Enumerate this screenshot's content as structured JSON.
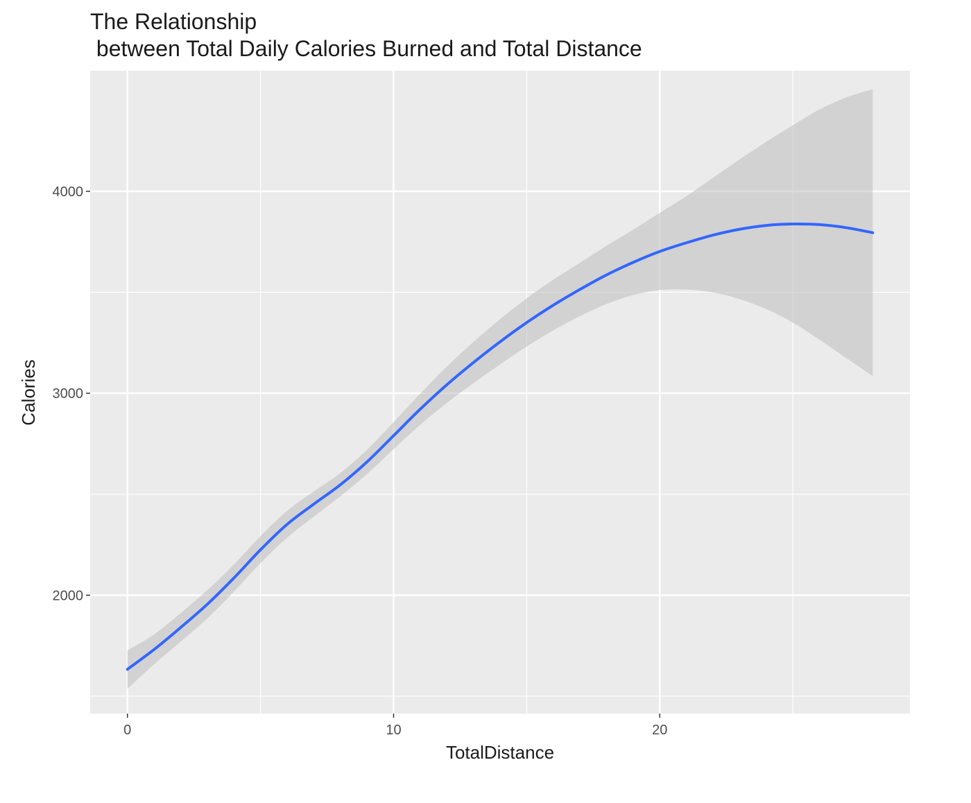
{
  "chart_data": {
    "type": "line",
    "title": "The Relationship\n   between Total Daily Calories Burned and Total Distance",
    "xlabel": "TotalDistance",
    "ylabel": "Calories",
    "xlim": [
      -1.4,
      29.4
    ],
    "ylim": [
      1414,
      4597
    ],
    "x_ticks": [
      0,
      10,
      20
    ],
    "y_ticks": [
      2000,
      3000,
      4000
    ],
    "x_minor": [
      5,
      15,
      25
    ],
    "y_minor": [
      1500,
      2500,
      3500
    ],
    "grid": true,
    "legend": "none",
    "colors": {
      "panel": "#ebebeb",
      "grid": "#ffffff",
      "line": "#3366ff",
      "ribbon": "#bdbdbd"
    },
    "series": [
      {
        "x": [
          0,
          1,
          2,
          3,
          4,
          5,
          6,
          7,
          8,
          9,
          10,
          11,
          12,
          13,
          14,
          15,
          16,
          17,
          18,
          19,
          20,
          21,
          22,
          23,
          24,
          25,
          26,
          27,
          28
        ],
        "y": [
          1633,
          1731,
          1840,
          1955,
          2085,
          2225,
          2351,
          2451,
          2547,
          2660,
          2790,
          2921,
          3042,
          3152,
          3255,
          3350,
          3436,
          3514,
          3586,
          3648,
          3702,
          3745,
          3783,
          3812,
          3831,
          3838,
          3835,
          3820,
          3795
        ],
        "ymin": [
          1537,
          1658,
          1770,
          1885,
          2018,
          2159,
          2285,
          2389,
          2490,
          2600,
          2723,
          2844,
          2952,
          3050,
          3143,
          3231,
          3311,
          3382,
          3442,
          3486,
          3511,
          3514,
          3499,
          3466,
          3417,
          3350,
          3265,
          3175,
          3085
        ],
        "ymax": [
          1727,
          1806,
          1911,
          2025,
          2152,
          2293,
          2418,
          2514,
          2605,
          2720,
          2857,
          2998,
          3132,
          3254,
          3367,
          3470,
          3562,
          3646,
          3730,
          3810,
          3893,
          3976,
          4067,
          4158,
          4245,
          4327,
          4405,
          4465,
          4505
        ]
      }
    ]
  }
}
